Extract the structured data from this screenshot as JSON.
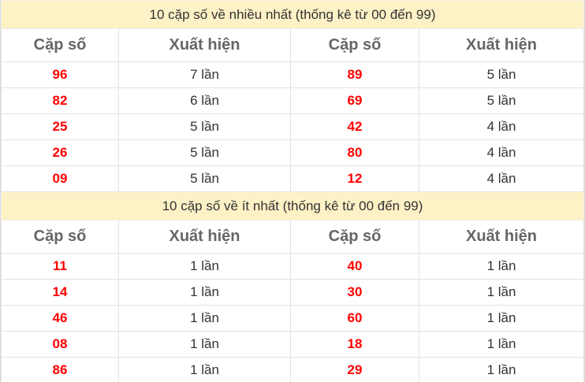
{
  "headers": {
    "pair": "Cặp số",
    "count": "Xuất hiện"
  },
  "sections": [
    {
      "title": "10 cặp số về nhiều nhất (thống kê từ 00 đến 99)",
      "rows": [
        [
          "96",
          "7 lần",
          "89",
          "5 lần"
        ],
        [
          "82",
          "6 lần",
          "69",
          "5 lần"
        ],
        [
          "25",
          "5 lần",
          "42",
          "4 lần"
        ],
        [
          "26",
          "5 lần",
          "80",
          "4 lần"
        ],
        [
          "09",
          "5 lần",
          "12",
          "4 lần"
        ]
      ]
    },
    {
      "title": "10 cặp số về ít nhất (thống kê từ 00 đến 99)",
      "rows": [
        [
          "11",
          "1 lần",
          "40",
          "1 lần"
        ],
        [
          "14",
          "1 lần",
          "30",
          "1 lần"
        ],
        [
          "46",
          "1 lần",
          "60",
          "1 lần"
        ],
        [
          "08",
          "1 lần",
          "18",
          "1 lần"
        ],
        [
          "86",
          "1 lần",
          "29",
          "1 lần"
        ]
      ]
    }
  ],
  "colors": {
    "number": "#ff0000",
    "title_bg": "#fdf1c6"
  }
}
